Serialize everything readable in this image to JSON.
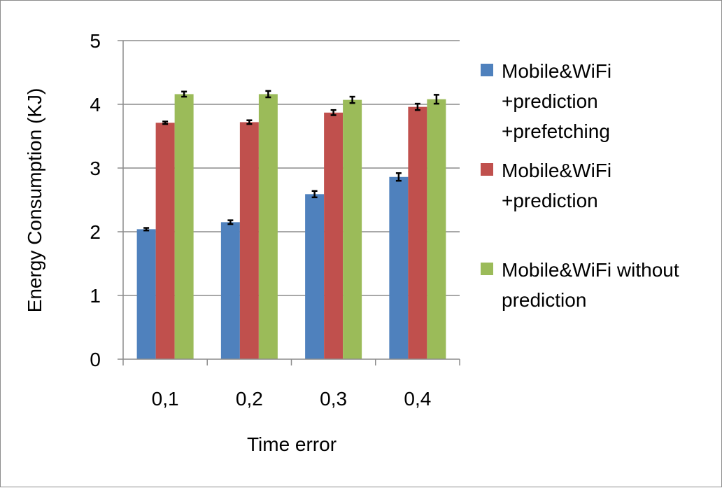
{
  "chart_data": {
    "type": "bar",
    "xlabel": "Time error",
    "ylabel": "Energy Consumption (KJ)",
    "ylim": [
      0,
      5
    ],
    "yticks": [
      "0",
      "1",
      "2",
      "3",
      "4",
      "5"
    ],
    "categories": [
      "0,1",
      "0,2",
      "0,3",
      "0,4"
    ],
    "grid": true,
    "legend_position": "right",
    "series": [
      {
        "name": "Mobile&WiFi +prediction +prefetching",
        "legend_lines": [
          "Mobile&WiFi",
          "+prediction",
          "+prefetching"
        ],
        "color": "#4f81bd",
        "values": [
          2.04,
          2.15,
          2.59,
          2.86
        ],
        "errors": [
          0.02,
          0.03,
          0.05,
          0.06
        ]
      },
      {
        "name": "Mobile&WiFi +prediction",
        "legend_lines": [
          "Mobile&WiFi",
          "+prediction"
        ],
        "color": "#c0504d",
        "values": [
          3.71,
          3.72,
          3.87,
          3.96
        ],
        "errors": [
          0.02,
          0.03,
          0.04,
          0.05
        ]
      },
      {
        "name": "Mobile&WiFi without prediction",
        "legend_lines": [
          "Mobile&WiFi without",
          "prediction"
        ],
        "color": "#9bbb59",
        "values": [
          4.16,
          4.16,
          4.07,
          4.08
        ],
        "errors": [
          0.04,
          0.05,
          0.05,
          0.07
        ]
      }
    ]
  }
}
